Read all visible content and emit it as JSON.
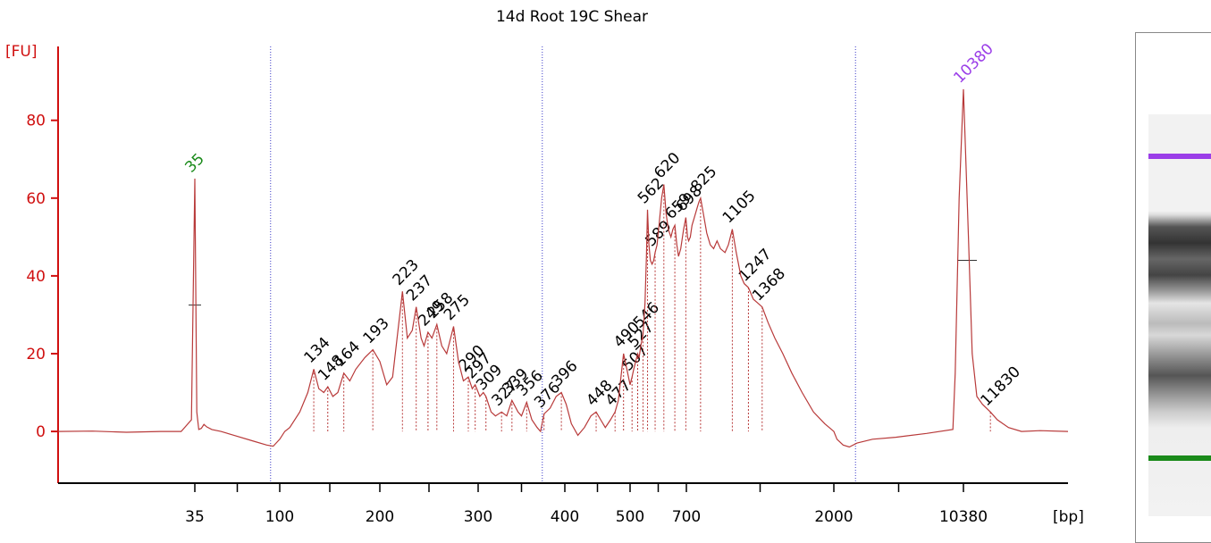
{
  "chart_data": {
    "type": "line",
    "title": "14d Root 19C Shear",
    "y_label": "[FU]",
    "x_label": "[bp]",
    "color": "#b83a3a",
    "axis_color": "#d01010",
    "xlim": [
      15,
      16000
    ],
    "xticks": [
      35,
      100,
      200,
      300,
      400,
      500,
      700,
      2000,
      10380
    ],
    "ylim": [
      -13.3,
      99
    ],
    "yticks": [
      0,
      20,
      40,
      60,
      80
    ],
    "x": [
      15,
      20,
      25,
      30,
      33,
      34.5,
      35,
      36.5,
      38,
      40,
      42,
      44,
      48,
      55,
      65,
      80,
      90,
      95,
      100,
      105,
      110,
      120,
      128,
      134,
      139,
      144,
      148,
      153,
      158,
      164,
      170,
      176,
      185,
      193,
      200,
      207,
      213,
      218,
      223,
      228,
      233,
      237,
      242,
      245,
      249,
      253,
      258,
      263,
      268,
      272,
      275,
      280,
      285,
      290,
      294,
      297,
      302,
      306,
      309,
      315,
      320,
      327,
      333,
      339,
      346,
      350,
      356,
      362,
      368,
      372,
      376,
      383,
      390,
      396,
      402,
      410,
      420,
      430,
      440,
      448,
      455,
      462,
      470,
      477,
      482,
      486,
      490,
      495,
      500,
      507,
      513,
      520,
      527,
      532,
      538,
      546,
      553,
      558,
      562,
      567,
      572,
      578,
      584,
      589,
      596,
      604,
      612,
      620,
      628,
      636,
      645,
      652,
      659,
      666,
      672,
      680,
      690,
      698,
      710,
      720,
      735,
      750,
      770,
      790,
      810,
      825,
      850,
      880,
      910,
      940,
      970,
      1000,
      1040,
      1070,
      1105,
      1140,
      1180,
      1210,
      1247,
      1290,
      1330,
      1368,
      1420,
      1480,
      1550,
      1630,
      1720,
      1820,
      1920,
      2000,
      2200,
      2600,
      3000,
      3500,
      4500,
      6000,
      8000,
      9700,
      9850,
      10100,
      10380,
      10650,
      10850,
      11100,
      11400,
      11830,
      12200,
      12800,
      13500,
      14500,
      16000
    ],
    "values": [
      0,
      0.1,
      -0.2,
      0,
      0,
      3,
      65,
      5,
      0.5,
      0.8,
      1.8,
      1.2,
      0.5,
      0,
      -1,
      -2.5,
      -3.5,
      -3.8,
      -2,
      0,
      1,
      5,
      10,
      16,
      11,
      10,
      11.5,
      9,
      10,
      15,
      13,
      16,
      19,
      21,
      18,
      12,
      14,
      25,
      36,
      24,
      26,
      32,
      24,
      22,
      25.5,
      24,
      27.5,
      22,
      20,
      24,
      27,
      18,
      13,
      14,
      11,
      12,
      9,
      10,
      9,
      5,
      4,
      5,
      4,
      8,
      5,
      4,
      7.5,
      3,
      1,
      0,
      4.5,
      6,
      9,
      10,
      7,
      2,
      -1,
      1,
      4,
      5,
      3,
      1,
      3,
      5,
      8,
      14,
      20,
      16,
      12,
      14,
      16,
      18,
      20,
      19,
      22,
      25,
      33,
      45,
      57,
      48,
      44,
      43,
      44,
      46,
      48,
      54,
      60,
      63.5,
      56,
      52,
      50,
      52,
      53,
      48,
      45,
      47,
      52,
      55,
      50,
      49,
      50,
      53,
      55,
      57,
      59,
      60,
      56,
      51,
      48,
      47,
      49,
      47,
      46,
      48,
      52,
      46,
      40,
      38,
      37,
      34,
      33,
      32,
      28,
      24,
      20,
      15,
      10,
      5,
      2,
      0,
      -2,
      -3.5,
      -4,
      -3,
      -2,
      -1.5,
      -0.5,
      0.5,
      15,
      60,
      88,
      50,
      20,
      9,
      7,
      5,
      3,
      1,
      0,
      0.2,
      0
    ],
    "peaks": {
      "sizes": [
        134,
        148,
        164,
        193,
        223,
        237,
        249,
        258,
        275,
        290,
        297,
        309,
        327,
        339,
        356,
        376,
        396,
        448,
        477,
        490,
        507,
        527,
        546,
        562,
        589,
        620,
        659,
        698,
        825,
        1105,
        1247,
        1368,
        11830
      ],
      "values": [
        16,
        11.5,
        15,
        21,
        36,
        32,
        25.5,
        27.5,
        27,
        14,
        12,
        9,
        5,
        8,
        7.5,
        4.5,
        10,
        5,
        5,
        20,
        14,
        20,
        25,
        57,
        46,
        63.5,
        53,
        55,
        60,
        52,
        37,
        32,
        5
      ]
    },
    "markers": {
      "sizes": [
        35,
        10380
      ],
      "values": [
        65,
        88
      ],
      "colors": [
        "#1a8a1a",
        "#9b3ee8"
      ]
    },
    "region_bounds": [
      93,
      374,
      3400
    ],
    "region_color": "#3a3ac8"
  }
}
